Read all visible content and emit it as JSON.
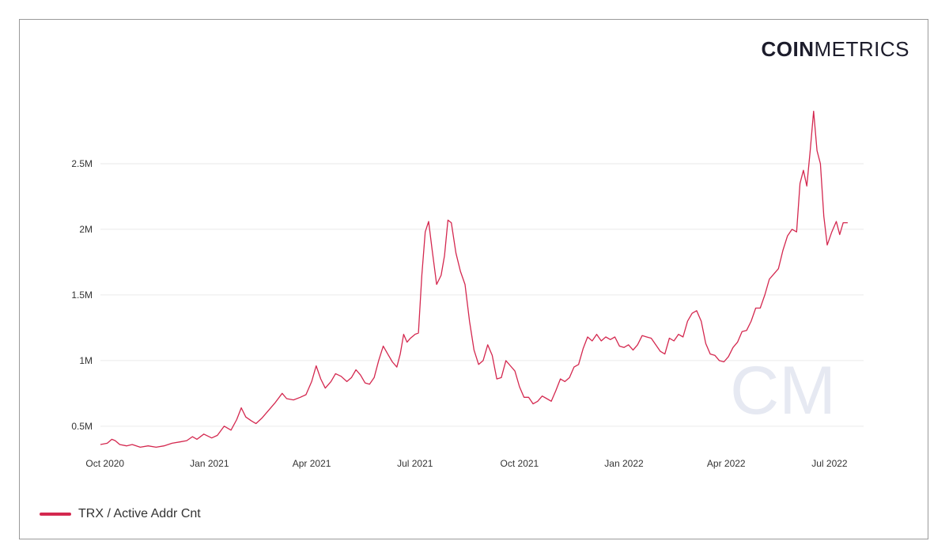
{
  "logo": {
    "bold": "COIN",
    "light": "METRICS",
    "watermark": "CM"
  },
  "colors": {
    "series": "#d4284f",
    "grid": "#eaeaea",
    "watermark": "#e6e9f2"
  },
  "chart_data": {
    "type": "line",
    "title": "",
    "xlabel": "",
    "ylabel": "",
    "ylim": [
      0.3,
      3.0
    ],
    "y_unit": "M",
    "grid": true,
    "legend_position": "bottom-left",
    "x_range": [
      "2020-09-27",
      "2022-07-31"
    ],
    "y_ticks": [
      {
        "value": 0.5,
        "label": "0.5M"
      },
      {
        "value": 1.0,
        "label": "1M"
      },
      {
        "value": 1.5,
        "label": "1.5M"
      },
      {
        "value": 2.0,
        "label": "2M"
      },
      {
        "value": 2.5,
        "label": "2.5M"
      }
    ],
    "x_ticks": [
      {
        "date": "2020-10-01",
        "label": "Oct 2020"
      },
      {
        "date": "2021-01-01",
        "label": "Jan 2021"
      },
      {
        "date": "2021-04-01",
        "label": "Apr 2021"
      },
      {
        "date": "2021-07-01",
        "label": "Jul 2021"
      },
      {
        "date": "2021-10-01",
        "label": "Oct 2021"
      },
      {
        "date": "2022-01-01",
        "label": "Jan 2022"
      },
      {
        "date": "2022-04-01",
        "label": "Apr 2022"
      },
      {
        "date": "2022-07-01",
        "label": "Jul 2022"
      }
    ],
    "series": [
      {
        "name": "TRX / Active Addr Cnt",
        "points": [
          [
            "2020-09-27",
            0.36
          ],
          [
            "2020-10-03",
            0.37
          ],
          [
            "2020-10-07",
            0.4
          ],
          [
            "2020-10-10",
            0.39
          ],
          [
            "2020-10-14",
            0.36
          ],
          [
            "2020-10-20",
            0.35
          ],
          [
            "2020-10-25",
            0.36
          ],
          [
            "2020-11-01",
            0.34
          ],
          [
            "2020-11-08",
            0.35
          ],
          [
            "2020-11-15",
            0.34
          ],
          [
            "2020-11-22",
            0.35
          ],
          [
            "2020-11-29",
            0.37
          ],
          [
            "2020-12-06",
            0.38
          ],
          [
            "2020-12-12",
            0.39
          ],
          [
            "2020-12-17",
            0.42
          ],
          [
            "2020-12-21",
            0.4
          ],
          [
            "2020-12-27",
            0.44
          ],
          [
            "2021-01-03",
            0.41
          ],
          [
            "2021-01-08",
            0.43
          ],
          [
            "2021-01-14",
            0.5
          ],
          [
            "2021-01-20",
            0.47
          ],
          [
            "2021-01-25",
            0.55
          ],
          [
            "2021-01-29",
            0.64
          ],
          [
            "2021-02-02",
            0.57
          ],
          [
            "2021-02-07",
            0.54
          ],
          [
            "2021-02-11",
            0.52
          ],
          [
            "2021-02-16",
            0.56
          ],
          [
            "2021-02-22",
            0.62
          ],
          [
            "2021-02-28",
            0.68
          ],
          [
            "2021-03-06",
            0.75
          ],
          [
            "2021-03-10",
            0.71
          ],
          [
            "2021-03-16",
            0.7
          ],
          [
            "2021-03-22",
            0.72
          ],
          [
            "2021-03-27",
            0.74
          ],
          [
            "2021-04-01",
            0.84
          ],
          [
            "2021-04-05",
            0.96
          ],
          [
            "2021-04-09",
            0.86
          ],
          [
            "2021-04-13",
            0.79
          ],
          [
            "2021-04-18",
            0.84
          ],
          [
            "2021-04-22",
            0.9
          ],
          [
            "2021-04-27",
            0.88
          ],
          [
            "2021-05-02",
            0.84
          ],
          [
            "2021-05-06",
            0.87
          ],
          [
            "2021-05-10",
            0.93
          ],
          [
            "2021-05-14",
            0.89
          ],
          [
            "2021-05-18",
            0.83
          ],
          [
            "2021-05-22",
            0.82
          ],
          [
            "2021-05-26",
            0.87
          ],
          [
            "2021-05-30",
            1.0
          ],
          [
            "2021-06-03",
            1.11
          ],
          [
            "2021-06-07",
            1.05
          ],
          [
            "2021-06-11",
            0.99
          ],
          [
            "2021-06-15",
            0.95
          ],
          [
            "2021-06-18",
            1.05
          ],
          [
            "2021-06-21",
            1.2
          ],
          [
            "2021-06-24",
            1.14
          ],
          [
            "2021-06-27",
            1.17
          ],
          [
            "2021-07-01",
            1.2
          ],
          [
            "2021-07-04",
            1.21
          ],
          [
            "2021-07-07",
            1.65
          ],
          [
            "2021-07-10",
            1.98
          ],
          [
            "2021-07-13",
            2.06
          ],
          [
            "2021-07-16",
            1.85
          ],
          [
            "2021-07-20",
            1.58
          ],
          [
            "2021-07-24",
            1.65
          ],
          [
            "2021-07-27",
            1.8
          ],
          [
            "2021-07-30",
            2.07
          ],
          [
            "2021-08-02",
            2.05
          ],
          [
            "2021-08-06",
            1.82
          ],
          [
            "2021-08-10",
            1.68
          ],
          [
            "2021-08-14",
            1.58
          ],
          [
            "2021-08-18",
            1.3
          ],
          [
            "2021-08-22",
            1.08
          ],
          [
            "2021-08-26",
            0.97
          ],
          [
            "2021-08-30",
            1.0
          ],
          [
            "2021-09-03",
            1.12
          ],
          [
            "2021-09-07",
            1.04
          ],
          [
            "2021-09-11",
            0.86
          ],
          [
            "2021-09-15",
            0.87
          ],
          [
            "2021-09-19",
            1.0
          ],
          [
            "2021-09-23",
            0.96
          ],
          [
            "2021-09-27",
            0.92
          ],
          [
            "2021-10-01",
            0.8
          ],
          [
            "2021-10-05",
            0.72
          ],
          [
            "2021-10-09",
            0.72
          ],
          [
            "2021-10-13",
            0.67
          ],
          [
            "2021-10-17",
            0.69
          ],
          [
            "2021-10-21",
            0.73
          ],
          [
            "2021-10-25",
            0.71
          ],
          [
            "2021-10-29",
            0.69
          ],
          [
            "2021-11-02",
            0.77
          ],
          [
            "2021-11-06",
            0.86
          ],
          [
            "2021-11-10",
            0.84
          ],
          [
            "2021-11-14",
            0.87
          ],
          [
            "2021-11-18",
            0.95
          ],
          [
            "2021-11-22",
            0.97
          ],
          [
            "2021-11-26",
            1.09
          ],
          [
            "2021-11-30",
            1.18
          ],
          [
            "2021-12-04",
            1.15
          ],
          [
            "2021-12-08",
            1.2
          ],
          [
            "2021-12-12",
            1.15
          ],
          [
            "2021-12-16",
            1.18
          ],
          [
            "2021-12-20",
            1.16
          ],
          [
            "2021-12-24",
            1.18
          ],
          [
            "2021-12-28",
            1.11
          ],
          [
            "2022-01-01",
            1.1
          ],
          [
            "2022-01-05",
            1.12
          ],
          [
            "2022-01-09",
            1.08
          ],
          [
            "2022-01-13",
            1.12
          ],
          [
            "2022-01-17",
            1.19
          ],
          [
            "2022-01-21",
            1.18
          ],
          [
            "2022-01-25",
            1.17
          ],
          [
            "2022-01-29",
            1.12
          ],
          [
            "2022-02-02",
            1.07
          ],
          [
            "2022-02-06",
            1.05
          ],
          [
            "2022-02-10",
            1.17
          ],
          [
            "2022-02-14",
            1.15
          ],
          [
            "2022-02-18",
            1.2
          ],
          [
            "2022-02-22",
            1.18
          ],
          [
            "2022-02-26",
            1.3
          ],
          [
            "2022-03-02",
            1.36
          ],
          [
            "2022-03-06",
            1.38
          ],
          [
            "2022-03-10",
            1.3
          ],
          [
            "2022-03-14",
            1.13
          ],
          [
            "2022-03-18",
            1.05
          ],
          [
            "2022-03-22",
            1.04
          ],
          [
            "2022-03-26",
            1.0
          ],
          [
            "2022-03-30",
            0.99
          ],
          [
            "2022-04-03",
            1.03
          ],
          [
            "2022-04-07",
            1.1
          ],
          [
            "2022-04-11",
            1.14
          ],
          [
            "2022-04-15",
            1.22
          ],
          [
            "2022-04-19",
            1.23
          ],
          [
            "2022-04-23",
            1.3
          ],
          [
            "2022-04-27",
            1.4
          ],
          [
            "2022-05-01",
            1.4
          ],
          [
            "2022-05-05",
            1.5
          ],
          [
            "2022-05-09",
            1.62
          ],
          [
            "2022-05-13",
            1.66
          ],
          [
            "2022-05-17",
            1.7
          ],
          [
            "2022-05-21",
            1.84
          ],
          [
            "2022-05-25",
            1.95
          ],
          [
            "2022-05-29",
            2.0
          ],
          [
            "2022-06-02",
            1.98
          ],
          [
            "2022-06-05",
            2.35
          ],
          [
            "2022-06-08",
            2.45
          ],
          [
            "2022-06-11",
            2.33
          ],
          [
            "2022-06-14",
            2.6
          ],
          [
            "2022-06-17",
            2.9
          ],
          [
            "2022-06-20",
            2.6
          ],
          [
            "2022-06-23",
            2.5
          ],
          [
            "2022-06-26",
            2.1
          ],
          [
            "2022-06-29",
            1.88
          ],
          [
            "2022-07-03",
            1.98
          ],
          [
            "2022-07-07",
            2.06
          ],
          [
            "2022-07-10",
            1.96
          ],
          [
            "2022-07-13",
            2.05
          ],
          [
            "2022-07-17",
            2.05
          ]
        ]
      }
    ]
  }
}
